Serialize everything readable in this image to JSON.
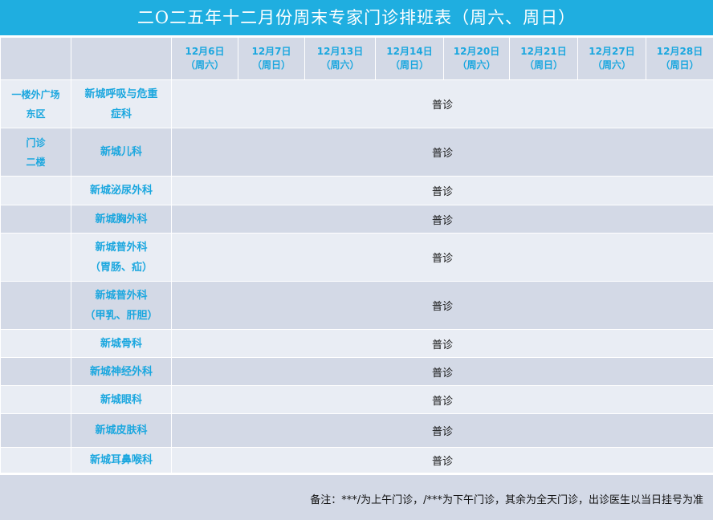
{
  "title": "二O二五年十二月份周末专家门诊排班表（周六、周日）",
  "header": {
    "blank_1": "",
    "blank_2": "",
    "dates": [
      {
        "date": "12月6日",
        "day": "（周六）"
      },
      {
        "date": "12月7日",
        "day": "（周日）"
      },
      {
        "date": "12月13日",
        "day": "（周六）"
      },
      {
        "date": "12月14日",
        "day": "（周日）"
      },
      {
        "date": "12月20日",
        "day": "（周六）"
      },
      {
        "date": "12月21日",
        "day": "（周日）"
      },
      {
        "date": "12月27日",
        "day": "（周六）"
      },
      {
        "date": "12月28日",
        "day": "（周日）"
      }
    ]
  },
  "locations": {
    "east_line1": "一楼外广场",
    "east_line2": "东区",
    "clinic_line1": "门诊",
    "clinic_line2": "二楼"
  },
  "rows": [
    {
      "dept_line1": "新城呼吸与危重",
      "dept_line2": "症科",
      "clinic": "普诊"
    },
    {
      "dept_line1": "新城儿科",
      "dept_line2": "",
      "clinic": "普诊"
    },
    {
      "dept_line1": "新城泌尿外科",
      "dept_line2": "",
      "clinic": "普诊"
    },
    {
      "dept_line1": "新城胸外科",
      "dept_line2": "",
      "clinic": "普诊"
    },
    {
      "dept_line1": "新城普外科",
      "dept_line2": "（胃肠、疝）",
      "clinic": "普诊"
    },
    {
      "dept_line1": "新城普外科",
      "dept_line2": "（甲乳、肝胆）",
      "clinic": "普诊"
    },
    {
      "dept_line1": "新城骨科",
      "dept_line2": "",
      "clinic": "普诊"
    },
    {
      "dept_line1": "新城神经外科",
      "dept_line2": "",
      "clinic": "普诊"
    },
    {
      "dept_line1": "新城眼科",
      "dept_line2": "",
      "clinic": "普诊"
    },
    {
      "dept_line1": "新城皮肤科",
      "dept_line2": "",
      "clinic": "普诊"
    },
    {
      "dept_line1": "新城耳鼻喉科",
      "dept_line2": "",
      "clinic": "普诊"
    }
  ],
  "footer": {
    "note": "备注：***/为上午门诊，/***为下午门诊，其余为全天门诊，出诊医生以当日挂号为准"
  },
  "colors": {
    "title_bg": "#1faee0",
    "header_bg": "#d3d9e6",
    "row_light": "#e9edf4",
    "row_dark": "#d3d9e6",
    "accent_text": "#1ba7df"
  }
}
